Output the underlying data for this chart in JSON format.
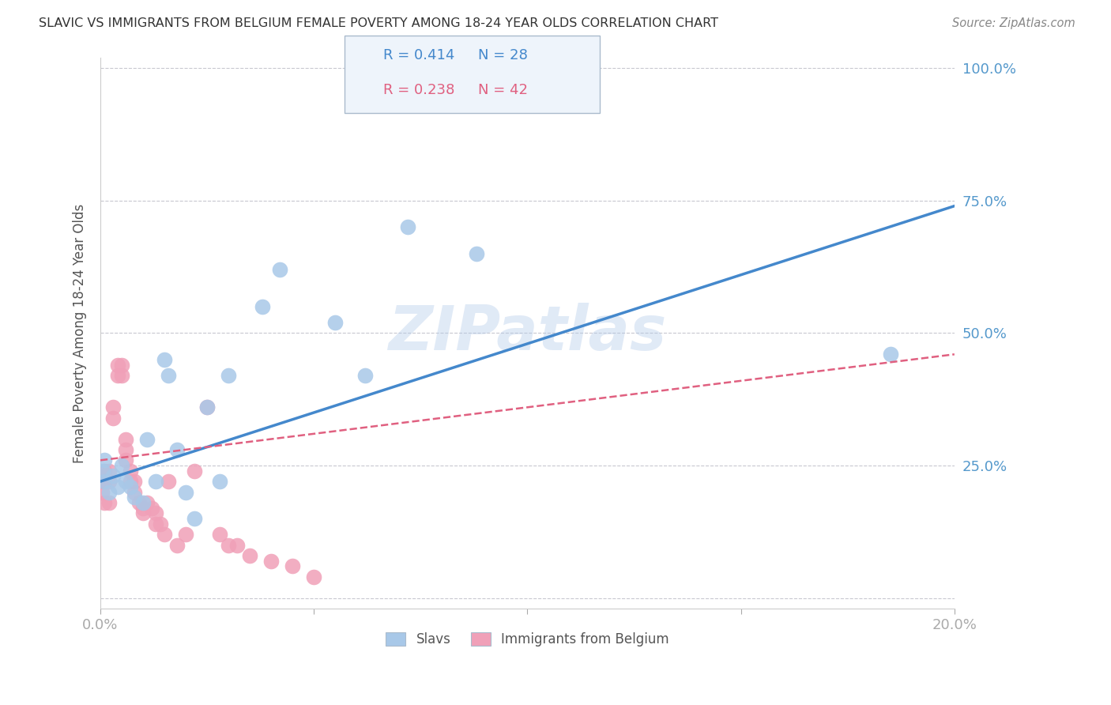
{
  "title": "SLAVIC VS IMMIGRANTS FROM BELGIUM FEMALE POVERTY AMONG 18-24 YEAR OLDS CORRELATION CHART",
  "source": "Source: ZipAtlas.com",
  "ylabel": "Female Poverty Among 18-24 Year Olds",
  "xlabel": "",
  "xlim": [
    0.0,
    0.2
  ],
  "ylim": [
    -0.02,
    1.02
  ],
  "yticks": [
    0.0,
    0.25,
    0.5,
    0.75,
    1.0
  ],
  "ytick_labels": [
    "",
    "25.0%",
    "50.0%",
    "75.0%",
    "100.0%"
  ],
  "xticks": [
    0.0,
    0.05,
    0.1,
    0.15,
    0.2
  ],
  "xtick_labels": [
    "0.0%",
    "",
    "",
    "",
    "20.0%"
  ],
  "background_color": "#ffffff",
  "grid_color": "#c8c8d0",
  "slavs_color": "#a8c8e8",
  "belgium_color": "#f0a0b8",
  "slavs_line_color": "#4488cc",
  "belgium_line_color": "#e06080",
  "axis_label_color": "#5599cc",
  "title_color": "#333333",
  "source_color": "#888888",
  "watermark": "ZIPatlas",
  "legend_r_slavs": "R = 0.414",
  "legend_n_slavs": "N = 28",
  "legend_r_belgium": "R = 0.238",
  "legend_n_belgium": "N = 42",
  "slavs_x": [
    0.0005,
    0.001,
    0.001,
    0.002,
    0.003,
    0.004,
    0.005,
    0.006,
    0.007,
    0.008,
    0.01,
    0.011,
    0.013,
    0.015,
    0.016,
    0.018,
    0.02,
    0.022,
    0.025,
    0.028,
    0.03,
    0.038,
    0.042,
    0.055,
    0.062,
    0.072,
    0.088,
    0.185
  ],
  "slavs_y": [
    0.24,
    0.26,
    0.22,
    0.2,
    0.23,
    0.21,
    0.25,
    0.22,
    0.21,
    0.19,
    0.18,
    0.3,
    0.22,
    0.45,
    0.42,
    0.28,
    0.2,
    0.15,
    0.36,
    0.22,
    0.42,
    0.55,
    0.62,
    0.52,
    0.42,
    0.7,
    0.65,
    0.46
  ],
  "belgium_x": [
    0.0003,
    0.0005,
    0.001,
    0.001,
    0.001,
    0.002,
    0.002,
    0.002,
    0.003,
    0.003,
    0.004,
    0.004,
    0.005,
    0.005,
    0.006,
    0.006,
    0.006,
    0.007,
    0.007,
    0.008,
    0.008,
    0.009,
    0.01,
    0.01,
    0.011,
    0.012,
    0.013,
    0.013,
    0.014,
    0.015,
    0.016,
    0.018,
    0.02,
    0.022,
    0.025,
    0.028,
    0.03,
    0.032,
    0.035,
    0.04,
    0.045,
    0.05
  ],
  "belgium_y": [
    0.2,
    0.22,
    0.24,
    0.22,
    0.18,
    0.24,
    0.22,
    0.18,
    0.36,
    0.34,
    0.44,
    0.42,
    0.44,
    0.42,
    0.3,
    0.28,
    0.26,
    0.24,
    0.22,
    0.22,
    0.2,
    0.18,
    0.17,
    0.16,
    0.18,
    0.17,
    0.16,
    0.14,
    0.14,
    0.12,
    0.22,
    0.1,
    0.12,
    0.24,
    0.36,
    0.12,
    0.1,
    0.1,
    0.08,
    0.07,
    0.06,
    0.04
  ],
  "slavs_line_x0": 0.0,
  "slavs_line_x1": 0.2,
  "slavs_line_y0": 0.22,
  "slavs_line_y1": 0.74,
  "belgium_line_x0": 0.0,
  "belgium_line_x1": 0.2,
  "belgium_line_y0": 0.26,
  "belgium_line_y1": 0.46
}
